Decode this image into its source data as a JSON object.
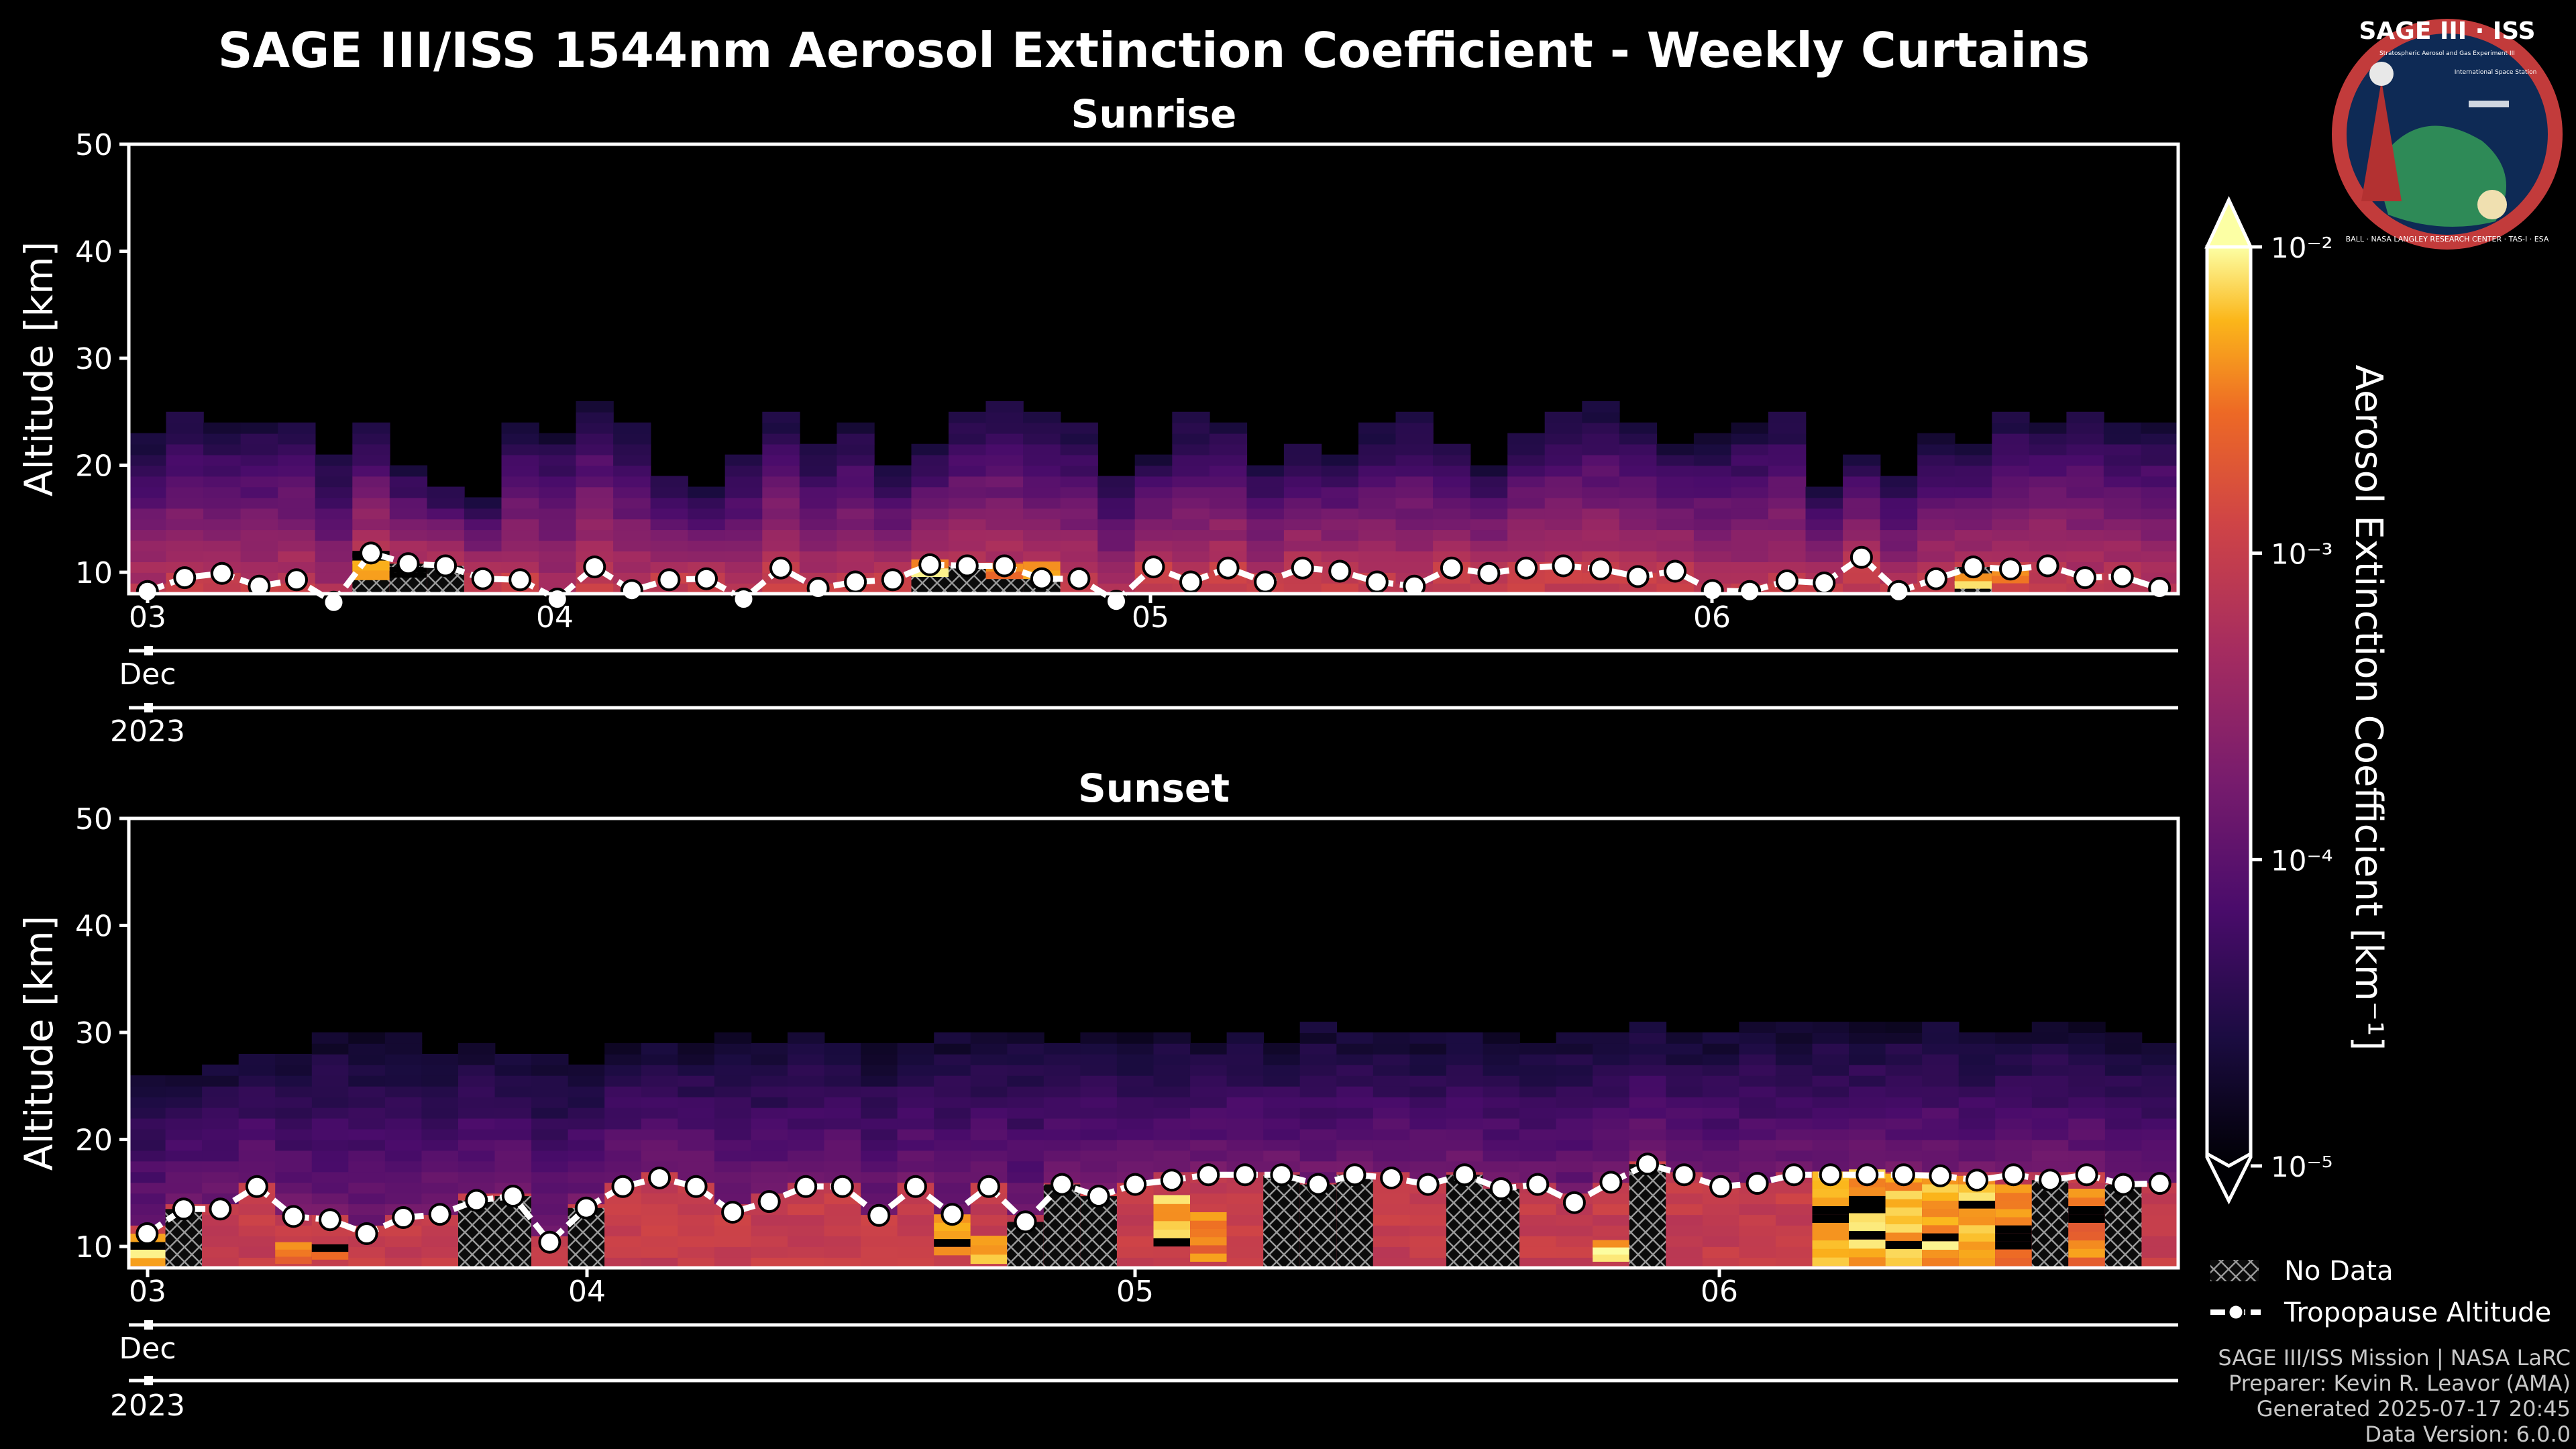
{
  "header": {
    "title": "SAGE III/ISS 1544nm Aerosol Extinction Coefficient - Weekly Curtains"
  },
  "logo": {
    "name": "SAGE III · ISS",
    "subtitle": "Stratospheric Aerosol and Gas Experiment III",
    "right_text": "International Space Station",
    "ring_text": "BALL · NASA LANGLEY RESEARCH CENTER · TAS-I · ESA"
  },
  "colorbar": {
    "label": "Aerosol Extinction Coefficient [km⁻¹]",
    "scale": "log",
    "range": [
      1e-05,
      0.01
    ],
    "extend": "max",
    "ticks": [
      "10⁻²",
      "10⁻³",
      "10⁻⁴",
      "10⁻⁵"
    ],
    "colormap": "inferno"
  },
  "legend": {
    "no_data": "No Data",
    "tropopause": "Tropopause Altitude"
  },
  "footer": {
    "line1": "SAGE III/ISS Mission | NASA LaRC",
    "line2": "Preparer: Kevin R. Leavor (AMA)",
    "line3": "Generated 2025-07-17 20:45",
    "line4": "Data Version: 6.0.0"
  },
  "chart_data": [
    {
      "type": "heatmap",
      "title": "Sunrise",
      "ylabel": "Altitude [km]",
      "ylim": [
        8,
        50
      ],
      "yticks": [
        "10",
        "20",
        "30",
        "40",
        "50"
      ],
      "x_ticks": [
        "03",
        "04",
        "05",
        "06"
      ],
      "x_sub_label": "Dec",
      "x_year_label": "2023",
      "tropopause_km": [
        8.2,
        9.5,
        9.9,
        8.7,
        9.3,
        7.2,
        11.8,
        10.8,
        10.6,
        9.4,
        9.3,
        7.5,
        10.5,
        8.3,
        9.3,
        9.4,
        7.5,
        10.4,
        8.5,
        9.1,
        9.3,
        10.7,
        10.6,
        10.6,
        9.4,
        9.4,
        7.3,
        10.5,
        9.1,
        10.4,
        9.1,
        10.4,
        10.1,
        9.1,
        8.7,
        10.4,
        9.9,
        10.4,
        10.6,
        10.3,
        9.6,
        10.1,
        8.3,
        8.2,
        9.2,
        9.0,
        11.4,
        8.2,
        9.4,
        10.5,
        10.3,
        10.6,
        9.5,
        9.6,
        8.5
      ],
      "column_top_km": [
        23,
        25,
        24,
        24,
        24,
        21,
        24,
        20,
        18,
        17,
        24,
        23,
        26,
        24,
        19,
        18,
        21,
        25,
        22,
        24,
        20,
        22,
        25,
        26,
        25,
        24,
        19,
        21,
        25,
        24,
        20,
        22,
        21,
        24,
        25,
        22,
        20,
        23,
        25,
        26,
        24,
        22,
        23,
        24,
        25,
        18,
        21,
        19,
        23,
        22,
        25,
        24,
        25,
        24,
        24
      ],
      "enhanced_layers": [
        {
          "col": 6,
          "bottom_km": 9.3,
          "top_km": 12.0,
          "level": "high"
        },
        {
          "col": 7,
          "bottom_km": 9.5,
          "top_km": 10.5,
          "level": "mid"
        },
        {
          "col": 21,
          "bottom_km": 9.6,
          "top_km": 11.2,
          "level": "high"
        },
        {
          "col": 23,
          "bottom_km": 9.4,
          "top_km": 10.8,
          "level": "mid"
        },
        {
          "col": 24,
          "bottom_km": 9.4,
          "top_km": 11.0,
          "level": "high"
        },
        {
          "col": 49,
          "bottom_km": 8.5,
          "top_km": 9.9,
          "level": "high"
        },
        {
          "col": 50,
          "bottom_km": 9.0,
          "top_km": 10.4,
          "level": "mid"
        }
      ],
      "no_data_columns": [
        6,
        7,
        8,
        21,
        22,
        23,
        24,
        49
      ]
    },
    {
      "type": "heatmap",
      "title": "Sunset",
      "ylabel": "Altitude [km]",
      "ylim": [
        8,
        50
      ],
      "yticks": [
        "10",
        "20",
        "30",
        "40",
        "50"
      ],
      "x_ticks": [
        "03",
        "04",
        "05",
        "06"
      ],
      "x_sub_label": "Dec",
      "x_year_label": "2023",
      "tropopause_km": [
        11.2,
        13.5,
        13.5,
        15.6,
        12.8,
        12.5,
        11.2,
        12.7,
        13.0,
        14.3,
        14.7,
        10.4,
        13.6,
        15.6,
        16.4,
        15.6,
        13.2,
        14.2,
        15.6,
        15.6,
        12.9,
        15.6,
        13.0,
        15.6,
        12.3,
        15.8,
        14.7,
        15.8,
        16.2,
        16.7,
        16.7,
        16.7,
        15.8,
        16.7,
        16.4,
        15.8,
        16.7,
        15.4,
        15.8,
        14.1,
        16.0,
        17.7,
        16.7,
        15.6,
        15.9,
        16.7,
        16.7,
        16.7,
        16.7,
        16.6,
        16.2,
        16.7,
        16.2,
        16.7,
        15.8,
        15.9
      ],
      "column_top_km": [
        26,
        26,
        27,
        28,
        28,
        30,
        30,
        30,
        28,
        29,
        28,
        28,
        27,
        29,
        29,
        29,
        30,
        29,
        30,
        29,
        29,
        29,
        30,
        30,
        30,
        29,
        30,
        30,
        30,
        29,
        30,
        29,
        31,
        30,
        30,
        30,
        30,
        30,
        29,
        30,
        30,
        31,
        30,
        30,
        31,
        31,
        31,
        31,
        31,
        31,
        30,
        30,
        31,
        31,
        30,
        29
      ],
      "enhanced_layers": [
        {
          "col": 0,
          "bottom_km": 8.2,
          "top_km": 11.2,
          "level": "high"
        },
        {
          "col": 4,
          "bottom_km": 8.4,
          "top_km": 10.4,
          "level": "mid"
        },
        {
          "col": 5,
          "bottom_km": 8.8,
          "top_km": 10.2,
          "level": "mid"
        },
        {
          "col": 22,
          "bottom_km": 9.2,
          "top_km": 13.0,
          "level": "high"
        },
        {
          "col": 23,
          "bottom_km": 8.4,
          "top_km": 11.0,
          "level": "high"
        },
        {
          "col": 28,
          "bottom_km": 10.0,
          "top_km": 14.8,
          "level": "high"
        },
        {
          "col": 29,
          "bottom_km": 8.6,
          "top_km": 13.2,
          "level": "mid"
        },
        {
          "col": 40,
          "bottom_km": 8.6,
          "top_km": 10.6,
          "level": "high"
        },
        {
          "col": 46,
          "bottom_km": 8.2,
          "top_km": 17.0,
          "level": "high"
        },
        {
          "col": 47,
          "bottom_km": 8.2,
          "top_km": 17.2,
          "level": "high"
        },
        {
          "col": 48,
          "bottom_km": 8.2,
          "top_km": 16.8,
          "level": "high"
        },
        {
          "col": 49,
          "bottom_km": 8.2,
          "top_km": 16.6,
          "level": "high"
        },
        {
          "col": 50,
          "bottom_km": 8.2,
          "top_km": 16.6,
          "level": "high"
        },
        {
          "col": 51,
          "bottom_km": 8.2,
          "top_km": 15.8,
          "level": "mid"
        },
        {
          "col": 53,
          "bottom_km": 8.2,
          "top_km": 15.4,
          "level": "mid"
        }
      ],
      "no_data_columns": [
        1,
        9,
        10,
        12,
        24,
        25,
        26,
        31,
        32,
        33,
        36,
        37,
        41,
        52,
        54
      ]
    }
  ]
}
